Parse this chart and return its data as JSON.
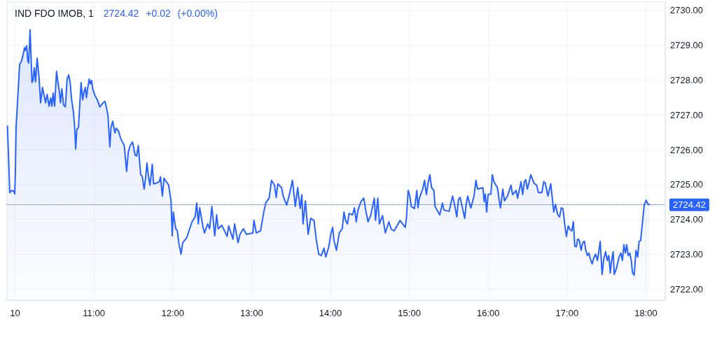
{
  "chart_data": {
    "type": "area",
    "title": "IND FDO IMOB, 1",
    "subtitle": "2724.42 +0.02 (+0.00%)",
    "xlim": [
      9.898,
      18.244
    ],
    "xticks": [
      {
        "value": 10,
        "label": "10"
      },
      {
        "value": 11,
        "label": "11:00"
      },
      {
        "value": 12,
        "label": "12:00"
      },
      {
        "value": 13,
        "label": "13:00"
      },
      {
        "value": 14,
        "label": "14:00"
      },
      {
        "value": 15,
        "label": "15:00"
      },
      {
        "value": 16,
        "label": "16:00"
      },
      {
        "value": 17,
        "label": "17:00"
      },
      {
        "value": 18,
        "label": "18:00"
      }
    ],
    "ylim": [
      2721.68,
      2730.24
    ],
    "yticks": [
      {
        "value": 2722,
        "label": "2722.00"
      },
      {
        "value": 2723,
        "label": "2723.00"
      },
      {
        "value": 2724,
        "label": "2724.00"
      },
      {
        "value": 2725,
        "label": "2725.00"
      },
      {
        "value": 2726,
        "label": "2726.00"
      },
      {
        "value": 2727,
        "label": "2727.00"
      },
      {
        "value": 2728,
        "label": "2728.00"
      },
      {
        "value": 2729,
        "label": "2729.00"
      },
      {
        "value": 2730,
        "label": "2730.00"
      }
    ],
    "grid": true,
    "marker": "none",
    "ref_lines": [
      {
        "axis": "y",
        "value": 2724.42,
        "label": "2724.42",
        "color": "#2962ff",
        "line_style": "dotted"
      }
    ],
    "x": [
      9.904,
      9.933,
      9.96,
      9.984,
      9.996,
      10.004,
      10.013,
      10.058,
      10.082,
      10.102,
      10.12,
      10.129,
      10.147,
      10.162,
      10.173,
      10.191,
      10.215,
      10.227,
      10.244,
      10.26,
      10.28,
      10.304,
      10.324,
      10.348,
      10.369,
      10.387,
      10.407,
      10.431,
      10.452,
      10.467,
      10.484,
      10.502,
      10.526,
      10.547,
      10.564,
      10.576,
      10.594,
      10.615,
      10.638,
      10.66,
      10.68,
      10.698,
      10.718,
      10.74,
      10.757,
      10.769,
      10.784,
      10.804,
      10.837,
      10.858,
      10.873,
      10.891,
      10.905,
      10.92,
      10.94,
      10.956,
      10.971,
      10.985,
      11.015,
      11.044,
      11.074,
      11.118,
      11.14,
      11.157,
      11.178,
      11.202,
      11.216,
      11.237,
      11.267,
      11.282,
      11.311,
      11.34,
      11.385,
      11.415,
      11.436,
      11.46,
      11.489,
      11.524,
      11.542,
      11.563,
      11.593,
      11.613,
      11.637,
      11.652,
      11.673,
      11.691,
      11.711,
      11.74,
      11.756,
      11.791,
      11.829,
      11.844,
      11.868,
      11.889,
      11.948,
      11.978,
      11.993,
      12.007,
      12.037,
      12.058,
      12.076,
      12.105,
      12.126,
      12.176,
      12.206,
      12.244,
      12.283,
      12.304,
      12.324,
      12.342,
      12.384,
      12.402,
      12.443,
      12.467,
      12.496,
      12.532,
      12.556,
      12.576,
      12.62,
      12.644,
      12.689,
      12.709,
      12.763,
      12.784,
      12.828,
      12.852,
      12.896,
      12.935,
      13.015,
      13.029,
      13.06,
      13.113,
      13.154,
      13.178,
      13.222,
      13.252,
      13.291,
      13.311,
      13.332,
      13.38,
      13.4,
      13.444,
      13.474,
      13.518,
      13.54,
      13.554,
      13.584,
      13.616,
      13.637,
      13.652,
      13.682,
      13.717,
      13.749,
      13.791,
      13.82,
      13.851,
      13.883,
      13.918,
      13.94,
      13.978,
      14.007,
      14.028,
      14.043,
      14.076,
      14.111,
      14.149,
      14.171,
      14.191,
      14.215,
      14.236,
      14.28,
      14.304,
      14.327,
      14.348,
      14.387,
      14.422,
      14.443,
      14.476,
      14.511,
      14.556,
      14.571,
      14.6,
      14.62,
      14.66,
      14.695,
      14.74,
      14.772,
      14.807,
      14.882,
      14.947,
      14.962,
      14.985,
      15.006,
      15.024,
      15.065,
      15.095,
      15.109,
      15.127,
      15.169,
      15.193,
      15.216,
      15.237,
      15.26,
      15.282,
      15.311,
      15.326,
      15.364,
      15.385,
      15.42,
      15.438,
      15.504,
      15.548,
      15.569,
      15.602,
      15.622,
      15.643,
      15.66,
      15.702,
      15.72,
      15.74,
      15.762,
      15.78,
      15.82,
      15.844,
      15.865,
      15.933,
      15.948,
      15.963,
      15.98,
      15.998,
      16.034,
      16.052,
      16.073,
      16.117,
      16.14,
      16.156,
      16.185,
      16.206,
      16.244,
      16.289,
      16.309,
      16.354,
      16.372,
      16.416,
      16.437,
      16.458,
      16.476,
      16.496,
      16.52,
      16.54,
      16.58,
      16.615,
      16.636,
      16.68,
      16.704,
      16.724,
      16.757,
      16.793,
      16.816,
      16.831,
      16.852,
      16.882,
      16.905,
      16.926,
      16.947,
      16.971,
      16.991,
      17.015,
      17.036,
      17.06,
      17.08,
      17.098,
      17.118,
      17.133,
      17.154,
      17.178,
      17.198,
      17.22,
      17.237,
      17.258,
      17.276,
      17.296,
      17.317,
      17.34,
      17.362,
      17.385,
      17.406,
      17.42,
      17.444,
      17.465,
      17.489,
      17.509,
      17.529,
      17.548,
      17.563,
      17.584,
      17.598,
      17.622,
      17.643,
      17.66,
      17.682,
      17.702,
      17.72,
      17.74,
      17.756,
      17.776,
      17.796,
      17.815,
      17.83,
      17.851,
      17.874,
      17.895,
      17.913,
      17.933,
      17.954,
      17.978,
      18.002,
      18.022,
      18.043
    ],
    "series": [
      {
        "color": "#2962ff",
        "values": [
          2726.68,
          2724.77,
          2724.83,
          2724.81,
          2724.73,
          2725.34,
          2726.62,
          2728.45,
          2728.55,
          2728.73,
          2728.93,
          2728.85,
          2728.99,
          2728.55,
          2728.49,
          2729.44,
          2727.93,
          2727.99,
          2728.35,
          2727.95,
          2728.63,
          2728.09,
          2727.35,
          2727.79,
          2727.55,
          2727.35,
          2727.59,
          2727.25,
          2727.49,
          2727.25,
          2727.63,
          2727.25,
          2728.25,
          2727.89,
          2727.63,
          2727.35,
          2727.75,
          2727.29,
          2727.23,
          2728.03,
          2728.15,
          2727.95,
          2727.43,
          2727.09,
          2726.62,
          2726.02,
          2726.58,
          2726.64,
          2727.93,
          2727.43,
          2727.65,
          2727.79,
          2727.49,
          2727.75,
          2728.03,
          2727.89,
          2727.99,
          2727.75,
          2727.55,
          2727.43,
          2727.23,
          2727.35,
          2727.39,
          2727.23,
          2726.99,
          2726.08,
          2726.62,
          2726.82,
          2726.48,
          2726.62,
          2726.54,
          2726.32,
          2726.12,
          2725.38,
          2725.94,
          2726.12,
          2726.22,
          2725.84,
          2725.82,
          2726.12,
          2725.28,
          2725.24,
          2724.87,
          2725.12,
          2725.62,
          2725.24,
          2724.98,
          2725.58,
          2725.02,
          2725.04,
          2725.08,
          2725.22,
          2724.67,
          2725.18,
          2724.98,
          2724.53,
          2723.53,
          2724.21,
          2723.73,
          2723.67,
          2723.33,
          2723.0,
          2723.33,
          2723.47,
          2723.67,
          2723.93,
          2724.07,
          2724.47,
          2723.87,
          2724.33,
          2723.77,
          2723.61,
          2723.87,
          2723.73,
          2724.37,
          2723.53,
          2724.13,
          2723.73,
          2723.83,
          2723.73,
          2723.51,
          2723.81,
          2723.43,
          2723.87,
          2723.33,
          2723.57,
          2723.73,
          2723.57,
          2723.61,
          2723.97,
          2723.61,
          2723.67,
          2724.21,
          2724.47,
          2724.61,
          2725.12,
          2724.98,
          2724.63,
          2725.02,
          2724.91,
          2724.67,
          2724.41,
          2724.67,
          2725.12,
          2724.67,
          2724.37,
          2724.91,
          2724.31,
          2724.71,
          2723.87,
          2724.53,
          2723.57,
          2724.03,
          2723.97,
          2723.41,
          2723.0,
          2722.96,
          2723.17,
          2722.92,
          2723.21,
          2723.61,
          2723.77,
          2723.41,
          2723.11,
          2723.61,
          2723.73,
          2724.21,
          2723.97,
          2723.87,
          2724.17,
          2724.13,
          2724.33,
          2723.93,
          2724.27,
          2724.51,
          2724.61,
          2724.31,
          2723.93,
          2724.13,
          2724.61,
          2723.97,
          2724.61,
          2723.87,
          2724.11,
          2723.61,
          2723.93,
          2723.71,
          2723.67,
          2723.97,
          2723.77,
          2724.01,
          2724.83,
          2724.67,
          2724.37,
          2724.31,
          2724.83,
          2724.33,
          2724.61,
          2724.87,
          2725.12,
          2724.71,
          2725.04,
          2725.28,
          2724.91,
          2724.83,
          2724.37,
          2724.21,
          2724.13,
          2724.47,
          2724.27,
          2724.23,
          2724.67,
          2724.47,
          2724.07,
          2724.57,
          2724.63,
          2724.47,
          2724.03,
          2724.43,
          2724.67,
          2724.47,
          2724.33,
          2724.67,
          2725.12,
          2724.87,
          2724.91,
          2724.51,
          2724.73,
          2724.21,
          2724.71,
          2724.73,
          2725.28,
          2725.08,
          2724.91,
          2724.53,
          2724.33,
          2724.87,
          2724.53,
          2724.67,
          2724.98,
          2724.71,
          2724.83,
          2724.61,
          2725.08,
          2724.71,
          2725.08,
          2725.14,
          2724.87,
          2725.08,
          2725.28,
          2725.04,
          2724.98,
          2724.77,
          2724.77,
          2725.08,
          2725.04,
          2724.67,
          2725.02,
          2724.53,
          2724.21,
          2724.43,
          2724.13,
          2724.07,
          2724.33,
          2724.31,
          2723.85,
          2723.51,
          2723.81,
          2723.71,
          2723.67,
          2723.93,
          2723.23,
          2723.21,
          2723.43,
          2723.41,
          2723.11,
          2723.33,
          2723.37,
          2723.11,
          2722.96,
          2723.03,
          2722.86,
          2722.72,
          2722.9,
          2723.0,
          2722.82,
          2723.13,
          2723.37,
          2722.42,
          2722.86,
          2723.07,
          2722.82,
          2722.96,
          2722.46,
          2722.8,
          2723.07,
          2722.42,
          2722.56,
          2722.76,
          2722.92,
          2723.03,
          2722.82,
          2723.27,
          2723.03,
          2723.27,
          2722.96,
          2723.03,
          2722.8,
          2722.46,
          2722.4,
          2723.11,
          2722.92,
          2723.37,
          2723.39,
          2723.87,
          2724.41,
          2724.55,
          2724.45,
          2724.42
        ]
      }
    ]
  }
}
